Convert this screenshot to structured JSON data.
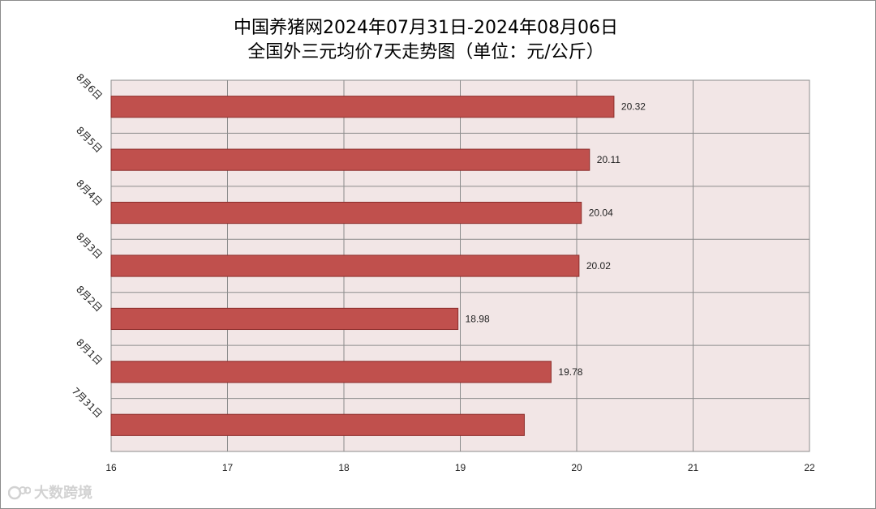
{
  "chart_data": {
    "type": "bar",
    "orientation": "horizontal",
    "title_lines": [
      "中国养猪网2024年07月31日-2024年08月06日",
      "全国外三元均价7天走势图（单位：元/公斤）"
    ],
    "categories": [
      "8月6日",
      "8月5日",
      "8月4日",
      "8月3日",
      "8月2日",
      "8月1日",
      "7月31日"
    ],
    "values": [
      20.32,
      20.11,
      20.04,
      20.02,
      18.98,
      19.78,
      19.55
    ],
    "data_labels": [
      "20.32",
      "20.11",
      "20.04",
      "20.02",
      "18.98",
      "19.78",
      ""
    ],
    "xlim": [
      16,
      22
    ],
    "x_ticks": [
      16,
      17,
      18,
      19,
      20,
      21,
      22
    ],
    "grid": true,
    "legend": "none",
    "colors": {
      "bar_fill": "#c0504d",
      "bar_stroke": "#8c2d2b",
      "plot_bg": "#f2e6e6",
      "grid": "#8c8c8c"
    }
  },
  "watermark": {
    "text": "大数跨境",
    "logo_text": "100"
  }
}
